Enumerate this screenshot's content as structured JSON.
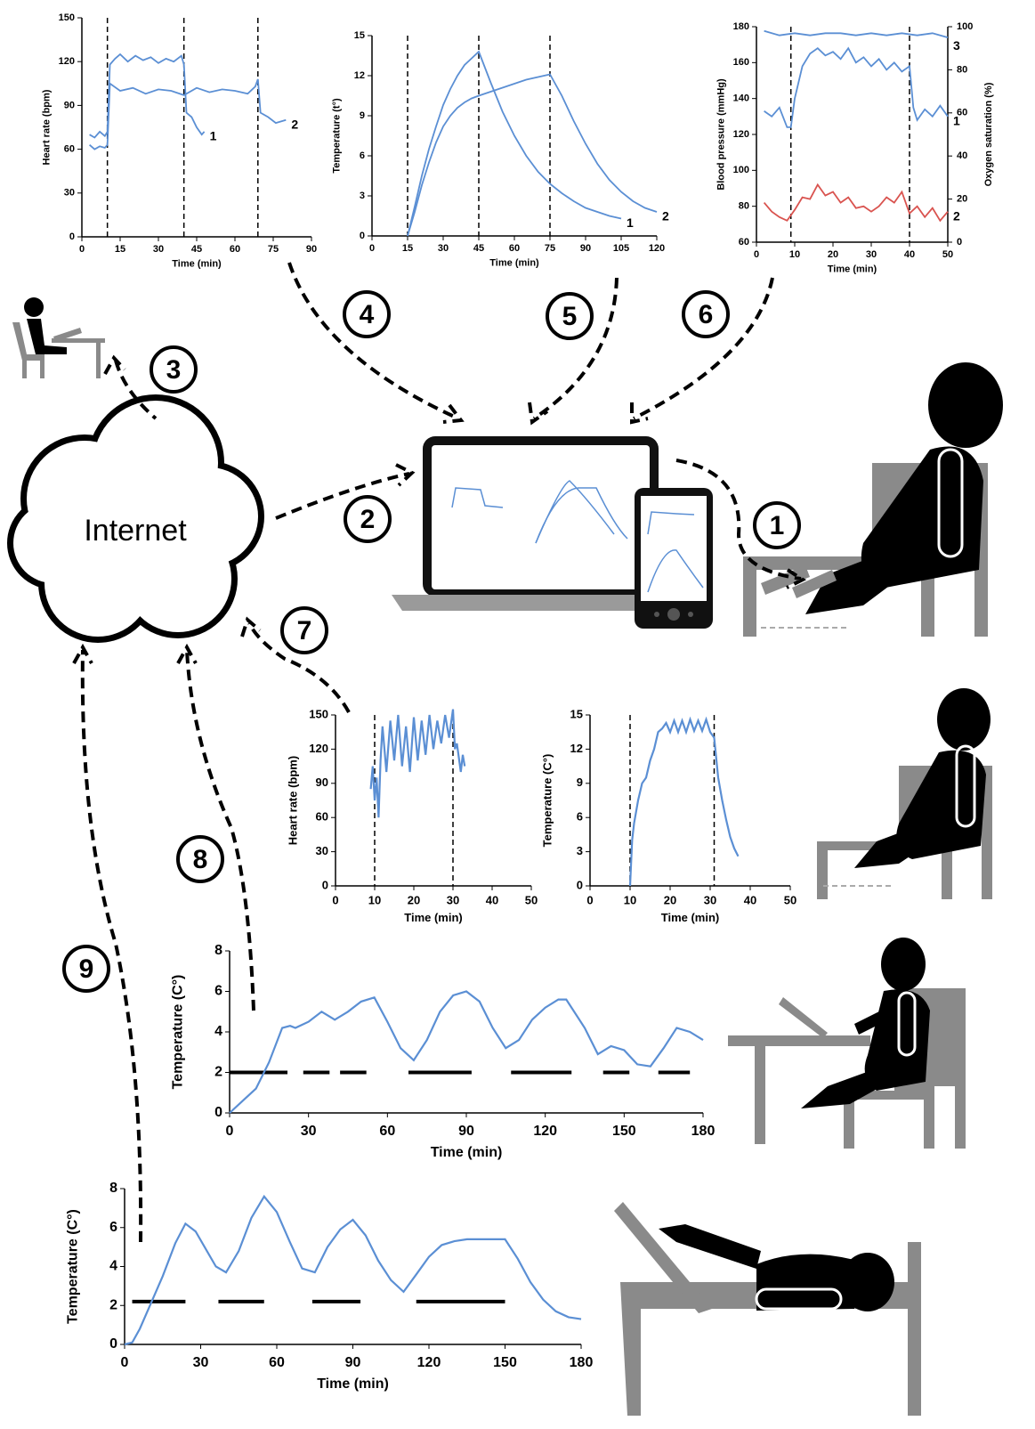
{
  "diagram": {
    "cloud": "Internet",
    "steps": [
      "1",
      "2",
      "3",
      "4",
      "5",
      "6",
      "7",
      "8",
      "9"
    ]
  },
  "chart_data": [
    {
      "type": "line",
      "xlabel": "Time (min)",
      "ylabel": "Heart rate (bpm)",
      "xlim": [
        0,
        90
      ],
      "xticks": [
        0,
        15,
        30,
        45,
        60,
        75,
        90
      ],
      "ylim": [
        0,
        150
      ],
      "yticks": [
        0,
        30,
        60,
        90,
        120,
        150
      ],
      "vlines": [
        10,
        40,
        69
      ],
      "series": [
        {
          "name": "1",
          "color": "#5b8fd4",
          "x": [
            3,
            5,
            7,
            9,
            10,
            11,
            13,
            15,
            18,
            21,
            24,
            27,
            30,
            33,
            36,
            39,
            40,
            41,
            43,
            45,
            47,
            48
          ],
          "values": [
            70,
            68,
            72,
            69,
            72,
            118,
            122,
            125,
            120,
            124,
            121,
            123,
            119,
            122,
            120,
            124,
            118,
            85,
            82,
            75,
            70,
            72
          ]
        },
        {
          "name": "2",
          "color": "#5b8fd4",
          "x": [
            3,
            5,
            7,
            9,
            10,
            11,
            15,
            20,
            25,
            30,
            35,
            40,
            45,
            50,
            55,
            60,
            65,
            68,
            69,
            70,
            73,
            76,
            80
          ],
          "values": [
            63,
            60,
            62,
            61,
            63,
            105,
            100,
            102,
            98,
            101,
            100,
            97,
            102,
            99,
            101,
            100,
            98,
            103,
            108,
            85,
            82,
            78,
            80
          ]
        }
      ]
    },
    {
      "type": "line",
      "xlabel": "Time (min)",
      "ylabel": "Temperature (t°)",
      "xlim": [
        0,
        120
      ],
      "xticks": [
        0,
        15,
        30,
        45,
        60,
        75,
        90,
        105,
        120
      ],
      "ylim": [
        0,
        15
      ],
      "yticks": [
        0,
        3,
        6,
        9,
        12,
        15
      ],
      "vlines": [
        15,
        45,
        75
      ],
      "series": [
        {
          "name": "1",
          "color": "#5b8fd4",
          "x": [
            15,
            18,
            21,
            24,
            27,
            30,
            33,
            36,
            39,
            42,
            45,
            50,
            55,
            60,
            65,
            70,
            75,
            80,
            85,
            90,
            95,
            100,
            105
          ],
          "values": [
            0,
            2.2,
            4.5,
            6.5,
            8.2,
            9.8,
            11,
            12,
            12.8,
            13.3,
            13.8,
            11.5,
            9.3,
            7.5,
            6,
            4.8,
            3.9,
            3.2,
            2.6,
            2.1,
            1.8,
            1.5,
            1.3
          ]
        },
        {
          "name": "2",
          "color": "#5b8fd4",
          "x": [
            15,
            18,
            21,
            24,
            27,
            30,
            33,
            36,
            39,
            42,
            45,
            50,
            55,
            60,
            65,
            70,
            75,
            80,
            85,
            90,
            95,
            100,
            105,
            110,
            115,
            120
          ],
          "values": [
            0,
            1.8,
            3.8,
            5.5,
            7,
            8.2,
            9,
            9.6,
            10,
            10.3,
            10.5,
            10.8,
            11.1,
            11.4,
            11.7,
            11.9,
            12.1,
            10.5,
            8.6,
            6.9,
            5.4,
            4.2,
            3.3,
            2.6,
            2.1,
            1.8
          ]
        }
      ]
    },
    {
      "type": "line",
      "xlabel": "Time (min)",
      "ylabel": "Blood pressure (mmHg)",
      "y2label": "Oxygen saturation (%)",
      "xlim": [
        0,
        50
      ],
      "xticks": [
        0,
        10,
        20,
        30,
        40,
        50
      ],
      "ylim": [
        60,
        180
      ],
      "yticks": [
        60,
        80,
        100,
        120,
        140,
        160,
        180
      ],
      "y2lim": [
        0,
        100
      ],
      "y2ticks": [
        0,
        20,
        40,
        60,
        80,
        100
      ],
      "vlines": [
        9,
        40
      ],
      "series": [
        {
          "name": "1",
          "color": "#5b8fd4",
          "x": [
            2,
            4,
            6,
            8,
            9,
            10,
            12,
            14,
            16,
            18,
            20,
            22,
            24,
            26,
            28,
            30,
            32,
            34,
            36,
            38,
            40,
            41,
            42,
            44,
            46,
            48,
            50
          ],
          "values": [
            133,
            130,
            135,
            124,
            124,
            140,
            158,
            165,
            168,
            164,
            166,
            162,
            168,
            160,
            163,
            158,
            162,
            156,
            160,
            155,
            158,
            135,
            128,
            134,
            130,
            136,
            130
          ]
        },
        {
          "name": "2",
          "color": "#d9534f",
          "x": [
            2,
            4,
            6,
            8,
            10,
            12,
            14,
            16,
            18,
            20,
            22,
            24,
            26,
            28,
            30,
            32,
            34,
            36,
            38,
            40,
            42,
            44,
            46,
            48,
            50
          ],
          "values": [
            82,
            77,
            74,
            72,
            78,
            85,
            84,
            92,
            86,
            88,
            82,
            85,
            79,
            80,
            77,
            80,
            85,
            82,
            88,
            76,
            80,
            74,
            79,
            72,
            77
          ]
        },
        {
          "name": "3",
          "color": "#5b8fd4",
          "axis": "y2",
          "x": [
            2,
            6,
            10,
            14,
            18,
            22,
            26,
            30,
            34,
            38,
            42,
            46,
            50
          ],
          "values": [
            98,
            96,
            97,
            96,
            97,
            97,
            96,
            97,
            96,
            97,
            96,
            97,
            95
          ]
        }
      ]
    },
    {
      "type": "line",
      "xlabel": "Time (min)",
      "ylabel": "Heart rate (bpm)",
      "xlim": [
        0,
        50
      ],
      "xticks": [
        0,
        10,
        20,
        30,
        40,
        50
      ],
      "ylim": [
        0,
        150
      ],
      "yticks": [
        0,
        30,
        60,
        90,
        120,
        150
      ],
      "vlines": [
        10,
        30
      ],
      "series": [
        {
          "color": "#5b8fd4",
          "x": [
            9,
            9.5,
            10,
            10.5,
            11,
            11.5,
            12,
            13,
            14,
            15,
            16,
            17,
            18,
            19,
            20,
            21,
            22,
            23,
            24,
            25,
            26,
            27,
            28,
            29,
            30,
            30.5,
            31,
            32,
            32.5,
            33
          ],
          "values": [
            85,
            105,
            75,
            95,
            60,
            110,
            140,
            100,
            145,
            110,
            150,
            105,
            140,
            100,
            148,
            110,
            145,
            115,
            150,
            120,
            145,
            125,
            150,
            130,
            155,
            120,
            125,
            100,
            115,
            105
          ]
        }
      ]
    },
    {
      "type": "line",
      "xlabel": "Time (min)",
      "ylabel": "Temperature (C°)",
      "xlim": [
        0,
        50
      ],
      "xticks": [
        0,
        10,
        20,
        30,
        40,
        50
      ],
      "ylim": [
        0,
        15
      ],
      "yticks": [
        0,
        3,
        6,
        9,
        12,
        15
      ],
      "vlines": [
        10,
        31
      ],
      "series": [
        {
          "color": "#5b8fd4",
          "x": [
            10,
            10.5,
            11,
            12,
            13,
            14,
            15,
            16,
            17,
            18,
            19,
            20,
            21,
            22,
            23,
            24,
            25,
            26,
            27,
            28,
            29,
            30,
            31,
            32,
            33,
            34,
            35,
            36,
            37
          ],
          "values": [
            0,
            4,
            5.5,
            7.5,
            9,
            9.5,
            11,
            12,
            13.5,
            13.8,
            14.3,
            13.5,
            14.5,
            13.5,
            14.5,
            13.5,
            14.6,
            13.6,
            14.5,
            13.6,
            14.6,
            13.5,
            13,
            9.5,
            7.5,
            5.8,
            4.3,
            3.3,
            2.6
          ]
        }
      ]
    },
    {
      "type": "line",
      "xlabel": "Time (min)",
      "ylabel": "Temperature (C°)",
      "xlim": [
        0,
        180
      ],
      "xticks": [
        0,
        30,
        60,
        90,
        120,
        150,
        180
      ],
      "ylim": [
        0,
        8
      ],
      "yticks": [
        0,
        2,
        4,
        6,
        8
      ],
      "segment_level": 2,
      "segments": [
        [
          0,
          22
        ],
        [
          28,
          38
        ],
        [
          42,
          52
        ],
        [
          68,
          92
        ],
        [
          107,
          130
        ],
        [
          142,
          152
        ],
        [
          163,
          175
        ]
      ],
      "series": [
        {
          "color": "#5b8fd4",
          "x": [
            0,
            5,
            10,
            15,
            20,
            23,
            25,
            30,
            35,
            40,
            45,
            50,
            55,
            60,
            65,
            70,
            75,
            80,
            85,
            90,
            95,
            100,
            105,
            110,
            115,
            120,
            125,
            128,
            135,
            140,
            145,
            150,
            155,
            160,
            165,
            170,
            175,
            180
          ],
          "values": [
            0,
            0.6,
            1.2,
            2.5,
            4.2,
            4.3,
            4.2,
            4.5,
            5.0,
            4.6,
            5.0,
            5.5,
            5.7,
            4.5,
            3.2,
            2.6,
            3.6,
            5,
            5.8,
            6.0,
            5.5,
            4.2,
            3.2,
            3.6,
            4.6,
            5.2,
            5.6,
            5.6,
            4.2,
            2.9,
            3.3,
            3.1,
            2.4,
            2.3,
            3.2,
            4.2,
            4.0,
            3.6
          ]
        }
      ]
    },
    {
      "type": "line",
      "xlabel": "Time (min)",
      "ylabel": "Temperature (C°)",
      "xlim": [
        0,
        180
      ],
      "xticks": [
        0,
        30,
        60,
        90,
        120,
        150,
        180
      ],
      "ylim": [
        0,
        8
      ],
      "yticks": [
        0,
        2,
        4,
        6,
        8
      ],
      "segment_level": 2.2,
      "segments": [
        [
          3,
          24
        ],
        [
          37,
          55
        ],
        [
          74,
          93
        ],
        [
          115,
          150
        ]
      ],
      "series": [
        {
          "color": "#5b8fd4",
          "x": [
            0,
            3,
            6,
            10,
            15,
            20,
            24,
            28,
            32,
            36,
            40,
            45,
            50,
            55,
            60,
            65,
            70,
            75,
            80,
            85,
            90,
            95,
            100,
            105,
            110,
            115,
            120,
            125,
            130,
            135,
            140,
            145,
            150,
            155,
            160,
            165,
            170,
            175,
            180
          ],
          "values": [
            0,
            0.1,
            0.8,
            2,
            3.5,
            5.2,
            6.2,
            5.8,
            4.9,
            4.0,
            3.7,
            4.8,
            6.5,
            7.6,
            6.8,
            5.3,
            3.9,
            3.7,
            5.0,
            5.9,
            6.4,
            5.6,
            4.3,
            3.3,
            2.7,
            3.6,
            4.5,
            5.1,
            5.3,
            5.4,
            5.4,
            5.4,
            5.4,
            4.4,
            3.2,
            2.3,
            1.7,
            1.4,
            1.3
          ]
        }
      ]
    }
  ]
}
